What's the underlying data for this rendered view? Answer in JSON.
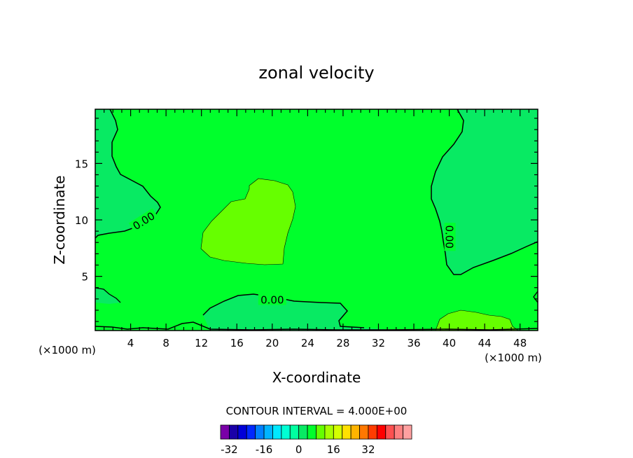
{
  "chart_data": {
    "type": "contour",
    "title": "zonal velocity",
    "xlabel": "X-coordinate",
    "ylabel": "Z-coordinate",
    "x_unit_label": "(×1000 m)",
    "x_unit_label_right": "(×1000 m)",
    "x_ticks": [
      "4",
      "8",
      "12",
      "16",
      "20",
      "24",
      "28",
      "32",
      "36",
      "40",
      "44",
      "48"
    ],
    "x_tick_values": [
      4,
      8,
      12,
      16,
      20,
      24,
      28,
      32,
      36,
      40,
      44,
      48
    ],
    "y_ticks": [
      "5",
      "10",
      "15"
    ],
    "y_tick_values": [
      5,
      10,
      15
    ],
    "xlim": [
      0,
      50
    ],
    "ylim": [
      0.2,
      19.8
    ],
    "contour_interval_text": "CONTOUR INTERVAL = 4.000E+00",
    "contour_labels": [
      {
        "text": "0.00",
        "x": 5.5,
        "z": 9.9,
        "angle": -32
      },
      {
        "text": "0.00",
        "x": 40.0,
        "z": 8.5,
        "angle": 90
      },
      {
        "text": "0.00",
        "x": 20.0,
        "z": 2.9,
        "angle": 0
      }
    ],
    "regions": [
      {
        "level_range": [
          0,
          4
        ],
        "color": "#00ff2c",
        "description": "background"
      },
      {
        "level_range": [
          -4,
          0
        ],
        "color": "#08ea63",
        "name": "left upper"
      },
      {
        "level_range": [
          4,
          8
        ],
        "color": "#66ff00",
        "name": "central blob"
      },
      {
        "level_range": [
          -4,
          0
        ],
        "color": "#08ea63",
        "name": "right upper"
      },
      {
        "level_range": [
          -4,
          0
        ],
        "color": "#08ea63",
        "name": "bottom band"
      },
      {
        "level_range": [
          4,
          8
        ],
        "color": "#66ff00",
        "name": "bottom right blob"
      }
    ],
    "colorbar": {
      "colors": [
        "#7a00a8",
        "#1a00a8",
        "#0000d8",
        "#0028ff",
        "#0080ff",
        "#00b4ff",
        "#00e8ff",
        "#00ffd4",
        "#00ffa0",
        "#08ea63",
        "#00ff2c",
        "#66ff00",
        "#a8ff00",
        "#d4ff00",
        "#ffe000",
        "#ffb400",
        "#ff7800",
        "#ff3c00",
        "#ff0000",
        "#ff5050",
        "#ff8080",
        "#ffa0a0"
      ],
      "tick_labels": [
        "-32",
        "-16",
        "0",
        "16",
        "32"
      ],
      "tick_values": [
        -32,
        -16,
        0,
        16,
        32
      ]
    }
  }
}
